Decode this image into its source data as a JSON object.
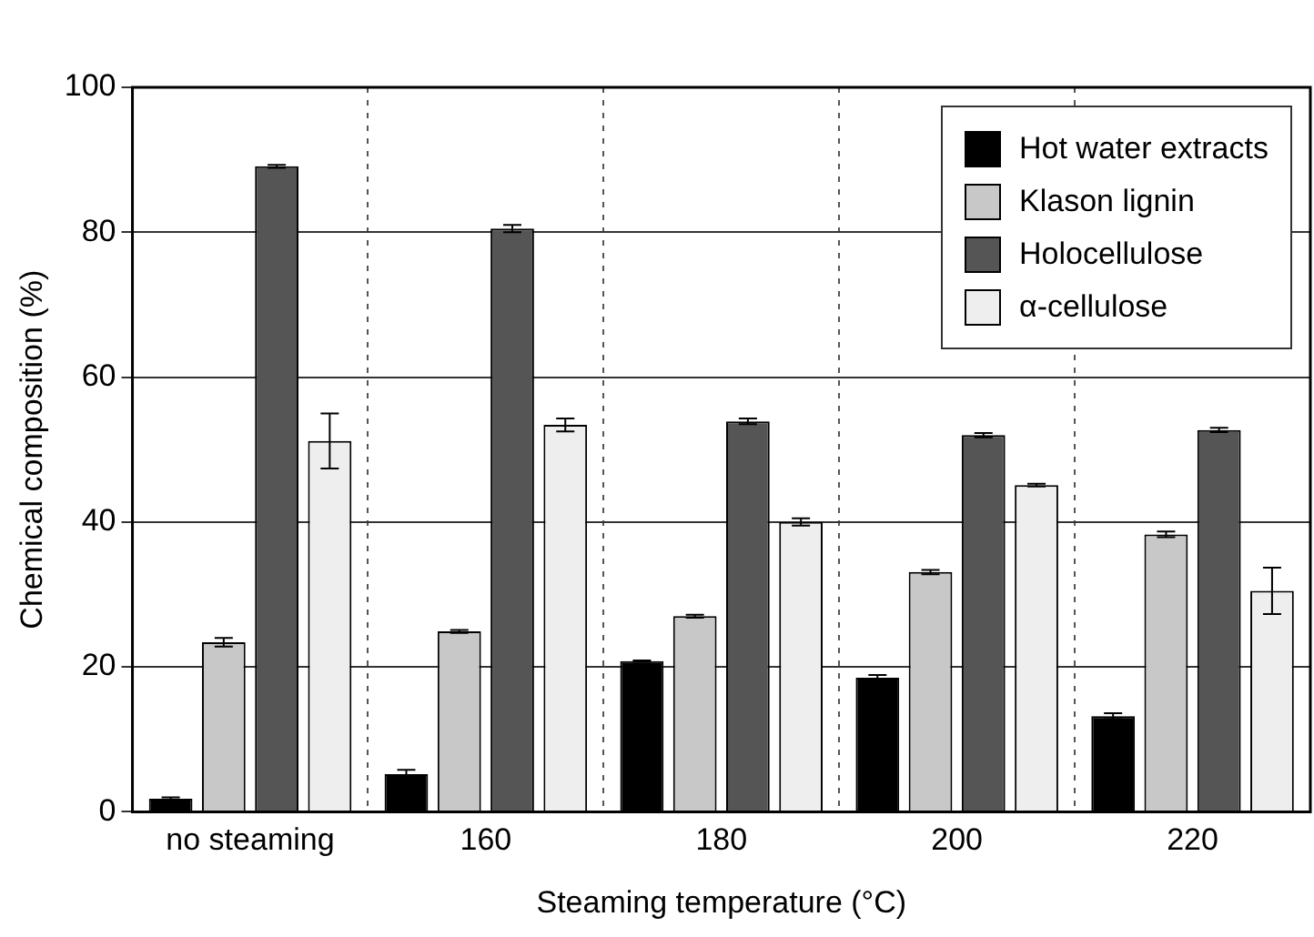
{
  "chart_data": {
    "type": "bar",
    "xlabel": "Steaming temperature (°C)",
    "ylabel": "Chemical composition (%)",
    "categories": [
      "no steaming",
      "160",
      "180",
      "200",
      "220"
    ],
    "series": [
      {
        "name": "Hot water extracts",
        "color": "#000000",
        "values": [
          1.8,
          5.2,
          20.8,
          18.5,
          13.2
        ],
        "errors": [
          0.2,
          0.6,
          0.1,
          0.4,
          0.4
        ]
      },
      {
        "name": "Klason lignin",
        "color": "#c8c8c8",
        "values": [
          23.4,
          24.9,
          27.0,
          33.1,
          38.3
        ],
        "errors": [
          0.6,
          0.2,
          0.2,
          0.3,
          0.4
        ]
      },
      {
        "name": "Holocellulose",
        "color": "#555555",
        "values": [
          89.1,
          80.5,
          53.9,
          52.0,
          52.7
        ],
        "errors": [
          0.2,
          0.5,
          0.4,
          0.3,
          0.3
        ]
      },
      {
        "name": "α-cellulose",
        "color": "#eeeeee",
        "values": [
          51.2,
          53.4,
          40.0,
          45.1,
          30.5
        ],
        "errors": [
          3.8,
          0.9,
          0.5,
          0.2,
          3.2
        ]
      }
    ],
    "ylim": [
      0,
      100
    ],
    "yticks": [
      0,
      20,
      40,
      60,
      80,
      100
    ],
    "grid": true,
    "legend": "top right"
  }
}
